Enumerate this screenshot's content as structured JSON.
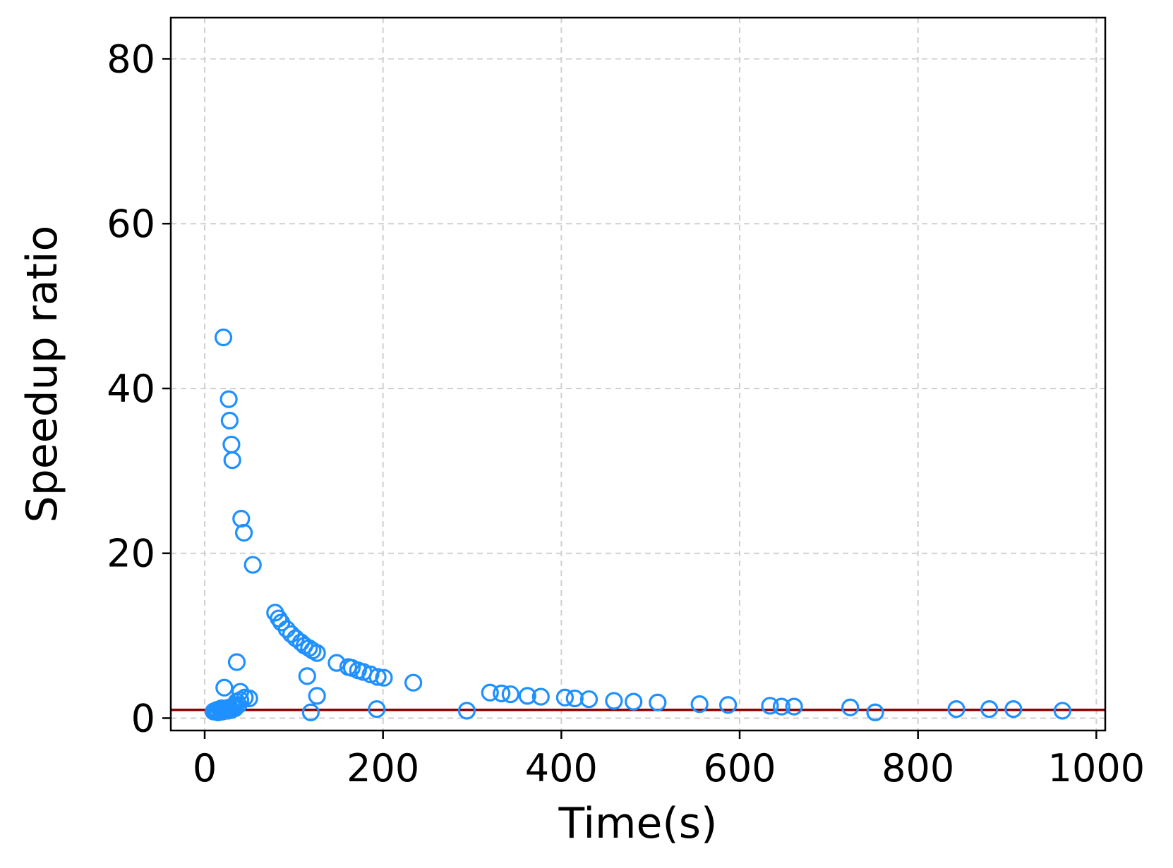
{
  "chart_data": {
    "type": "scatter",
    "title": "",
    "xlabel": "Time(s)",
    "ylabel": "Speedup ratio",
    "xlim": [
      -38,
      1010
    ],
    "ylim": [
      -1.5,
      85
    ],
    "xticks": [
      0,
      200,
      400,
      600,
      800,
      1000
    ],
    "yticks": [
      0,
      20,
      40,
      60,
      80
    ],
    "xtick_labels": [
      "0",
      "200",
      "400",
      "600",
      "800",
      "1000"
    ],
    "ytick_labels": [
      "0",
      "20",
      "40",
      "60",
      "80"
    ],
    "grid": true,
    "reference_line": {
      "y": 1,
      "color": "#8b0000"
    },
    "marker_color": "#1e90ff",
    "marker_style": "hollow-circle",
    "series": [
      {
        "points": [
          [
            10,
            0.8
          ],
          [
            12,
            0.9
          ],
          [
            14,
            1.0
          ],
          [
            15,
            0.7
          ],
          [
            17,
            1.1
          ],
          [
            18,
            0.9
          ],
          [
            19,
            1.2
          ],
          [
            20,
            0.8
          ],
          [
            21,
            1.0
          ],
          [
            22,
            1.1
          ],
          [
            23,
            0.9
          ],
          [
            24,
            1.2
          ],
          [
            25,
            1.0
          ],
          [
            26,
            0.9
          ],
          [
            27,
            1.1
          ],
          [
            28,
            1.3
          ],
          [
            30,
            1.0
          ],
          [
            31,
            1.4
          ],
          [
            33,
            1.5
          ],
          [
            34,
            1.2
          ],
          [
            36,
            2.0
          ],
          [
            38,
            1.6
          ],
          [
            40,
            2.2
          ],
          [
            45,
            2.5
          ],
          [
            21,
            46.2
          ],
          [
            27,
            38.7
          ],
          [
            28,
            36.1
          ],
          [
            30,
            33.2
          ],
          [
            31,
            31.3
          ],
          [
            41,
            24.2
          ],
          [
            44,
            22.5
          ],
          [
            54,
            18.6
          ],
          [
            22,
            3.7
          ],
          [
            36,
            6.8
          ],
          [
            40,
            3.2
          ],
          [
            50,
            2.4
          ],
          [
            79,
            12.8
          ],
          [
            83,
            12.1
          ],
          [
            86,
            11.6
          ],
          [
            92,
            10.8
          ],
          [
            97,
            10.2
          ],
          [
            102,
            9.7
          ],
          [
            108,
            9.2
          ],
          [
            112,
            8.8
          ],
          [
            117,
            8.5
          ],
          [
            121,
            8.2
          ],
          [
            126,
            7.9
          ],
          [
            115,
            5.1
          ],
          [
            119,
            0.7
          ],
          [
            126,
            2.7
          ],
          [
            148,
            6.7
          ],
          [
            161,
            6.2
          ],
          [
            165,
            6.1
          ],
          [
            172,
            5.8
          ],
          [
            178,
            5.6
          ],
          [
            186,
            5.3
          ],
          [
            194,
            5.0
          ],
          [
            201,
            4.9
          ],
          [
            234,
            4.3
          ],
          [
            193,
            1.1
          ],
          [
            294,
            0.9
          ],
          [
            320,
            3.1
          ],
          [
            333,
            3.0
          ],
          [
            343,
            2.9
          ],
          [
            362,
            2.7
          ],
          [
            377,
            2.6
          ],
          [
            404,
            2.5
          ],
          [
            415,
            2.4
          ],
          [
            431,
            2.3
          ],
          [
            459,
            2.1
          ],
          [
            481,
            2.0
          ],
          [
            508,
            1.9
          ],
          [
            555,
            1.7
          ],
          [
            587,
            1.6
          ],
          [
            634,
            1.5
          ],
          [
            647,
            1.4
          ],
          [
            661,
            1.4
          ],
          [
            724,
            1.3
          ],
          [
            752,
            0.7
          ],
          [
            843,
            1.1
          ],
          [
            880,
            1.1
          ],
          [
            907,
            1.1
          ],
          [
            962,
            0.9
          ]
        ]
      }
    ]
  }
}
